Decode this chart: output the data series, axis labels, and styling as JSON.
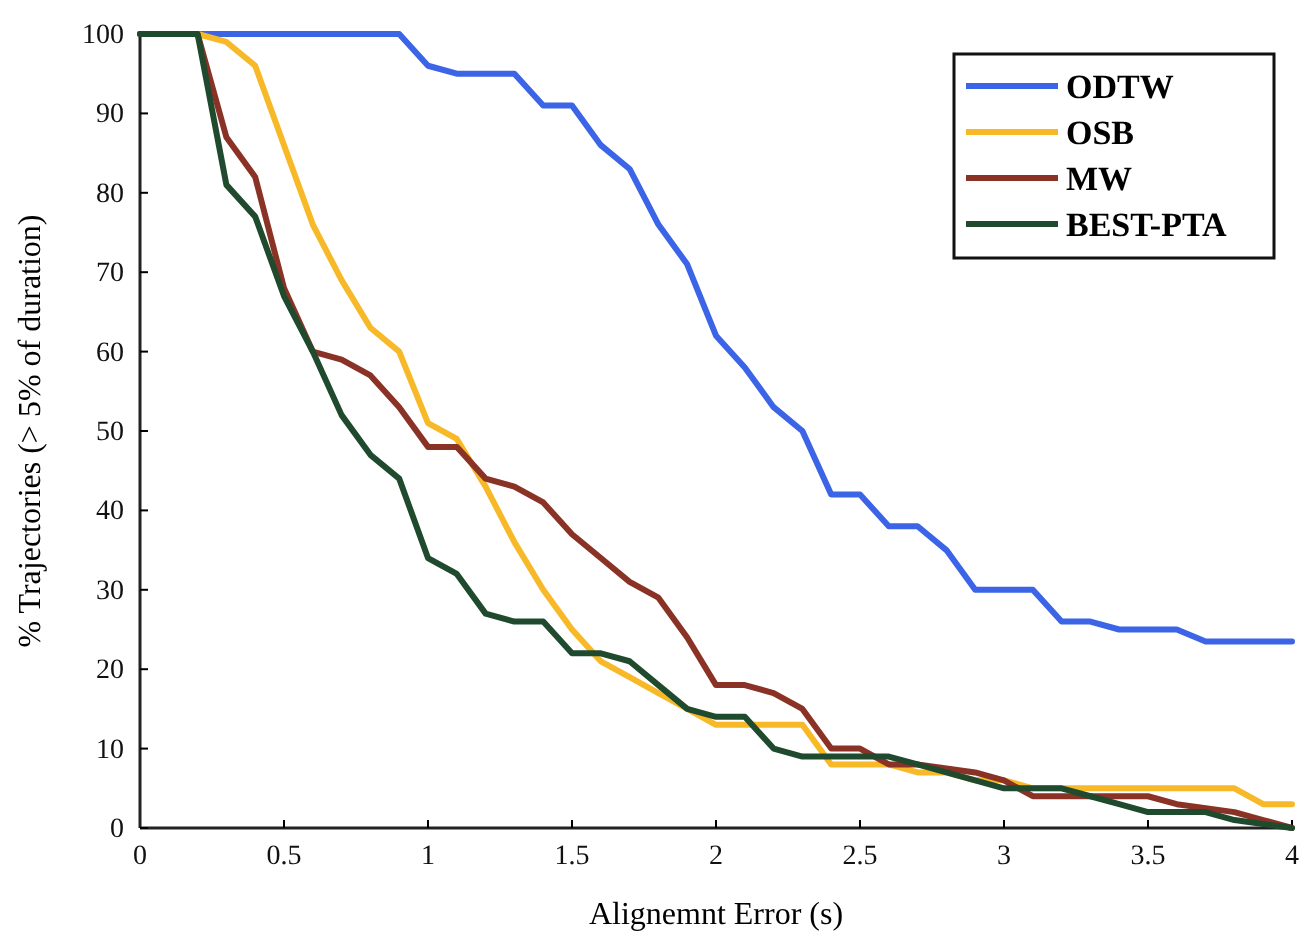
{
  "chart_data": {
    "type": "line",
    "xlabel": "Alignemnt Error (s)",
    "ylabel": "% Trajectories (> 5% of duration)",
    "xlim": [
      0,
      4
    ],
    "ylim": [
      0,
      100
    ],
    "xticks": [
      0,
      0.5,
      1,
      1.5,
      2,
      2.5,
      3,
      3.5,
      4
    ],
    "yticks": [
      0,
      10,
      20,
      30,
      40,
      50,
      60,
      70,
      80,
      90,
      100
    ],
    "grid": false,
    "legend": "top right",
    "marker": "none",
    "line_style": "solid",
    "series": [
      {
        "name": "ODTW",
        "color": "#3b64e6",
        "x": [
          0,
          0.9,
          1.0,
          1.1,
          1.3,
          1.4,
          1.5,
          1.6,
          1.7,
          1.8,
          1.9,
          2.0,
          2.1,
          2.2,
          2.3,
          2.4,
          2.5,
          2.6,
          2.7,
          2.8,
          2.9,
          3.1,
          3.2,
          3.3,
          3.4,
          3.6,
          3.7,
          4.0
        ],
        "values": [
          100,
          100,
          96,
          95,
          95,
          91,
          91,
          86,
          83,
          76,
          71,
          62,
          58,
          53,
          50,
          42,
          42,
          38,
          38,
          35,
          30,
          30,
          26,
          26,
          25,
          25,
          23.5,
          23.5
        ]
      },
      {
        "name": "OSB",
        "color": "#f7b928",
        "x": [
          0,
          0.2,
          0.3,
          0.4,
          0.5,
          0.6,
          0.7,
          0.8,
          0.9,
          1.0,
          1.1,
          1.2,
          1.3,
          1.4,
          1.5,
          1.6,
          1.7,
          1.8,
          1.9,
          2.0,
          2.1,
          2.2,
          2.3,
          2.4,
          2.5,
          2.6,
          2.7,
          2.8,
          2.9,
          3.0,
          3.1,
          3.5,
          3.8,
          3.9,
          4.0
        ],
        "values": [
          100,
          100,
          99,
          96,
          86,
          76,
          69,
          63,
          60,
          51,
          49,
          43,
          36,
          30,
          25,
          21,
          19,
          17,
          15,
          13,
          13,
          13,
          13,
          8,
          8,
          8,
          7,
          7,
          6,
          6,
          5,
          5,
          5,
          3,
          3
        ]
      },
      {
        "name": "MW",
        "color": "#8b3226",
        "x": [
          0,
          0.2,
          0.3,
          0.4,
          0.5,
          0.6,
          0.7,
          0.8,
          0.9,
          1.0,
          1.1,
          1.2,
          1.3,
          1.4,
          1.5,
          1.6,
          1.7,
          1.8,
          1.9,
          2.0,
          2.1,
          2.2,
          2.3,
          2.4,
          2.5,
          2.6,
          2.7,
          2.8,
          2.9,
          3.0,
          3.1,
          3.5,
          3.6,
          3.8,
          3.9,
          4.0
        ],
        "values": [
          100,
          100,
          87,
          82,
          68,
          60,
          59,
          57,
          53,
          48,
          48,
          44,
          43,
          41,
          37,
          34,
          31,
          29,
          24,
          18,
          18,
          17,
          15,
          10,
          10,
          8,
          8,
          7.5,
          7,
          6,
          4,
          4,
          3,
          2,
          1,
          0
        ]
      },
      {
        "name": "BEST-PTA",
        "color": "#1f4a2e",
        "x": [
          0,
          0.2,
          0.3,
          0.4,
          0.5,
          0.6,
          0.7,
          0.8,
          0.9,
          1.0,
          1.1,
          1.2,
          1.3,
          1.4,
          1.5,
          1.6,
          1.7,
          1.8,
          1.9,
          2.0,
          2.1,
          2.2,
          2.3,
          2.6,
          2.7,
          2.8,
          2.9,
          3.0,
          3.2,
          3.3,
          3.4,
          3.5,
          3.7,
          3.8,
          3.9,
          4.0
        ],
        "values": [
          100,
          100,
          81,
          77,
          67,
          60,
          52,
          47,
          44,
          34,
          32,
          27,
          26,
          26,
          22,
          22,
          21,
          18,
          15,
          14,
          14,
          10,
          9,
          9,
          8,
          7,
          6,
          5,
          5,
          4,
          3,
          2,
          2,
          1,
          0.5,
          0
        ]
      }
    ]
  }
}
